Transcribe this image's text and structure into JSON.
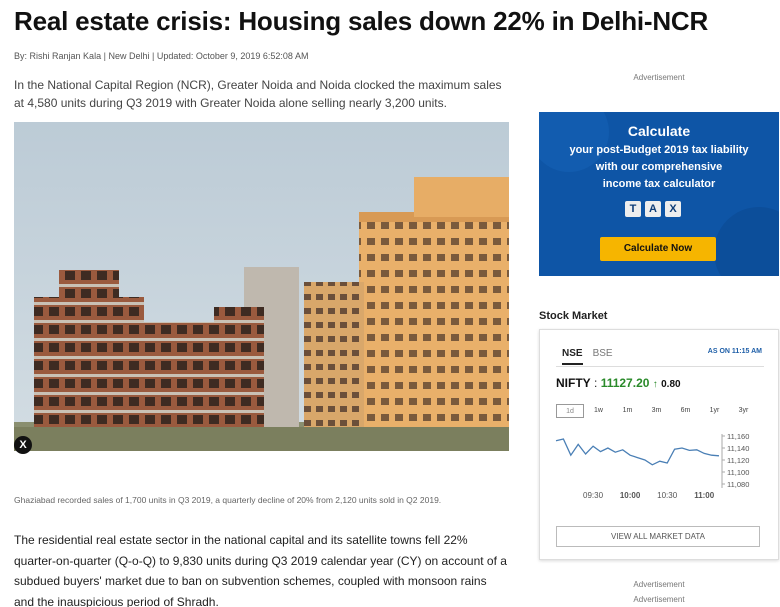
{
  "article": {
    "headline": "Real estate crisis: Housing sales down 22% in Delhi-NCR",
    "byline_prefix": "By:",
    "author": "Rishi Ranjan Kala",
    "location": "New Delhi",
    "updated": "Updated: October 9, 2019 6:52:08 AM",
    "summary": "In the National Capital Region (NCR), Greater Noida and Noida clocked the maximum sales at 4,580 units during Q3 2019 with Greater Noida alone selling nearly 3,200 units.",
    "close_label": "X",
    "caption": "Ghaziabad recorded sales of 1,700 units in Q3 2019, a quarterly decline of 20% from 2,120 units sold in Q2 2019.",
    "body": "The residential real estate sector in the national capital and its satellite towns fell 22% quarter-on-quarter (Q-o-Q) to 9,830 units during Q3 2019 calendar year (CY) on account of a subdued buyers' market due to ban on subvention schemes, coupled with monsoon rains and the inauspicious period of Shradh."
  },
  "sidebar": {
    "ad_label": "Advertisement",
    "ad": {
      "title": "Calculate",
      "subtitle_line1": "your post-Budget 2019 tax liability",
      "subtitle_line2": "with our comprehensive",
      "subtitle_line3": "income tax calculator",
      "tax_letters": [
        "T",
        "A",
        "X"
      ],
      "button": "Calculate Now",
      "bg_color": "#0e55a6",
      "button_color": "#f6b500"
    },
    "stock_market": {
      "heading": "Stock Market",
      "tabs": [
        "NSE",
        "BSE"
      ],
      "active_tab": "NSE",
      "as_on": "AS ON 11:15 AM",
      "index_name": "NIFTY",
      "index_value": "11127.20",
      "index_change": "0.80",
      "up_icon": "up-arrow-icon",
      "periods": [
        "1d",
        "1w",
        "1m",
        "3m",
        "6m",
        "1yr",
        "3yr"
      ],
      "active_period": "1d",
      "view_all": "VIEW ALL MARKET DATA"
    },
    "bottom_ad_label1": "Advertisement",
    "bottom_ad_label2": "Advertisement"
  },
  "chart_data": {
    "type": "line",
    "x_ticks": [
      "09:30",
      "10:00",
      "10:30",
      "11:00"
    ],
    "y_ticks": [
      "11,160",
      "11,140",
      "11,120",
      "11,100",
      "11,080"
    ],
    "ylim": [
      11080,
      11160
    ],
    "x": [
      0,
      5,
      10,
      15,
      20,
      25,
      30,
      35,
      40,
      45,
      50,
      55,
      60,
      65,
      70,
      75,
      80,
      85,
      90,
      95,
      100,
      105,
      110
    ],
    "y": [
      11152,
      11155,
      11128,
      11146,
      11130,
      11143,
      11134,
      11140,
      11133,
      11137,
      11128,
      11124,
      11120,
      11112,
      11118,
      11115,
      11138,
      11140,
      11136,
      11137,
      11131,
      11128,
      11127
    ],
    "xlim": [
      0,
      112
    ],
    "x_tick_values": [
      25,
      50,
      75,
      100
    ],
    "line_color": "#4a7fb5"
  }
}
